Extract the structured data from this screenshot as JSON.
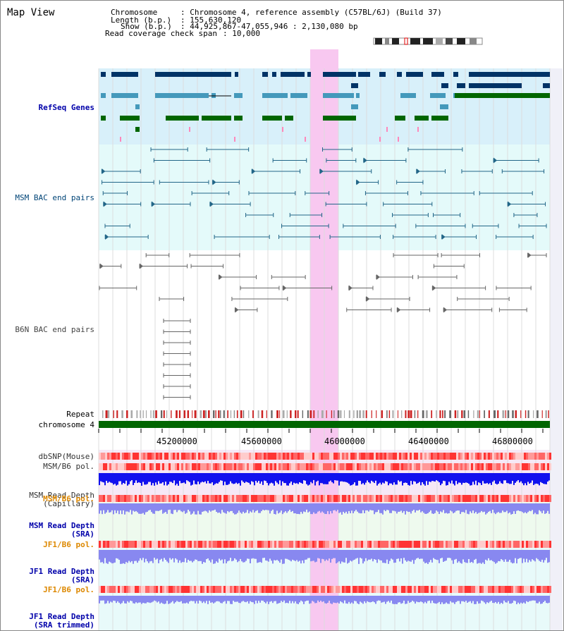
{
  "page_title": "Map View",
  "info": {
    "chromosome_key": "Chromosome",
    "chromosome_value": ": Chromosome 4, reference assembly (C57BL/6J) (Build 37)",
    "length_key": "Length (b.p.)",
    "length_value": ": 155,630,120",
    "show_key": "Show (b.p.)",
    "show_value": ": 44,925,867-47,055,946 : 2,130,080 bp",
    "coverage_key": "Read coverage check span",
    "coverage_value": ": 10,000"
  },
  "tracks": {
    "refseq": {
      "label": "RefSeq Genes",
      "color": "#0000aa"
    },
    "msm_bac": {
      "label": "MSM BAC end pairs",
      "color": "#004477"
    },
    "b6n_bac": {
      "label": "B6N BAC end pairs",
      "color": "#444444"
    },
    "repeat": {
      "label": "Repeat"
    },
    "chromosome": {
      "label": "chromosome 4"
    },
    "dbsnp": {
      "label": "dbSNP(Mouse)"
    },
    "msm_pol": {
      "label": "MSM/B6 pol."
    },
    "msm_depth_cap": {
      "label": "MSM Read Depth",
      "label2": "(Capillary)"
    },
    "msm_pol2": {
      "label": "MSM/B6 pol.",
      "color": "#dd8800"
    },
    "msm_depth_sra": {
      "label": "MSM Read Depth",
      "label2": "(SRA)",
      "color": "#0000aa"
    },
    "jf1_pol": {
      "label": "JF1/B6 pol.",
      "color": "#dd8800"
    },
    "jf1_depth_sra": {
      "label": "JF1 Read Depth",
      "label2": "(SRA)",
      "color": "#0000aa"
    },
    "jf1_pol2": {
      "label": "JF1/B6 pol.",
      "color": "#dd8800"
    },
    "jf1_depth_trim": {
      "label": "JF1 Read Depth",
      "label2": "(SRA trimmed)",
      "color": "#0000aa"
    }
  },
  "axis": {
    "ticks": [
      "45200000",
      "45600000",
      "46000000",
      "46400000",
      "46800000"
    ]
  },
  "colors": {
    "highlight": "#f8c8f0",
    "refseq_bg": "#d8f0fa",
    "bac_bg": "#e4fafa",
    "dark_blue": "#003366",
    "mid_blue": "#4499bb",
    "green": "#006600",
    "snp_red": "#ee3333",
    "depth_blue": "#1111ee",
    "depth_light": "#8888f0"
  }
}
